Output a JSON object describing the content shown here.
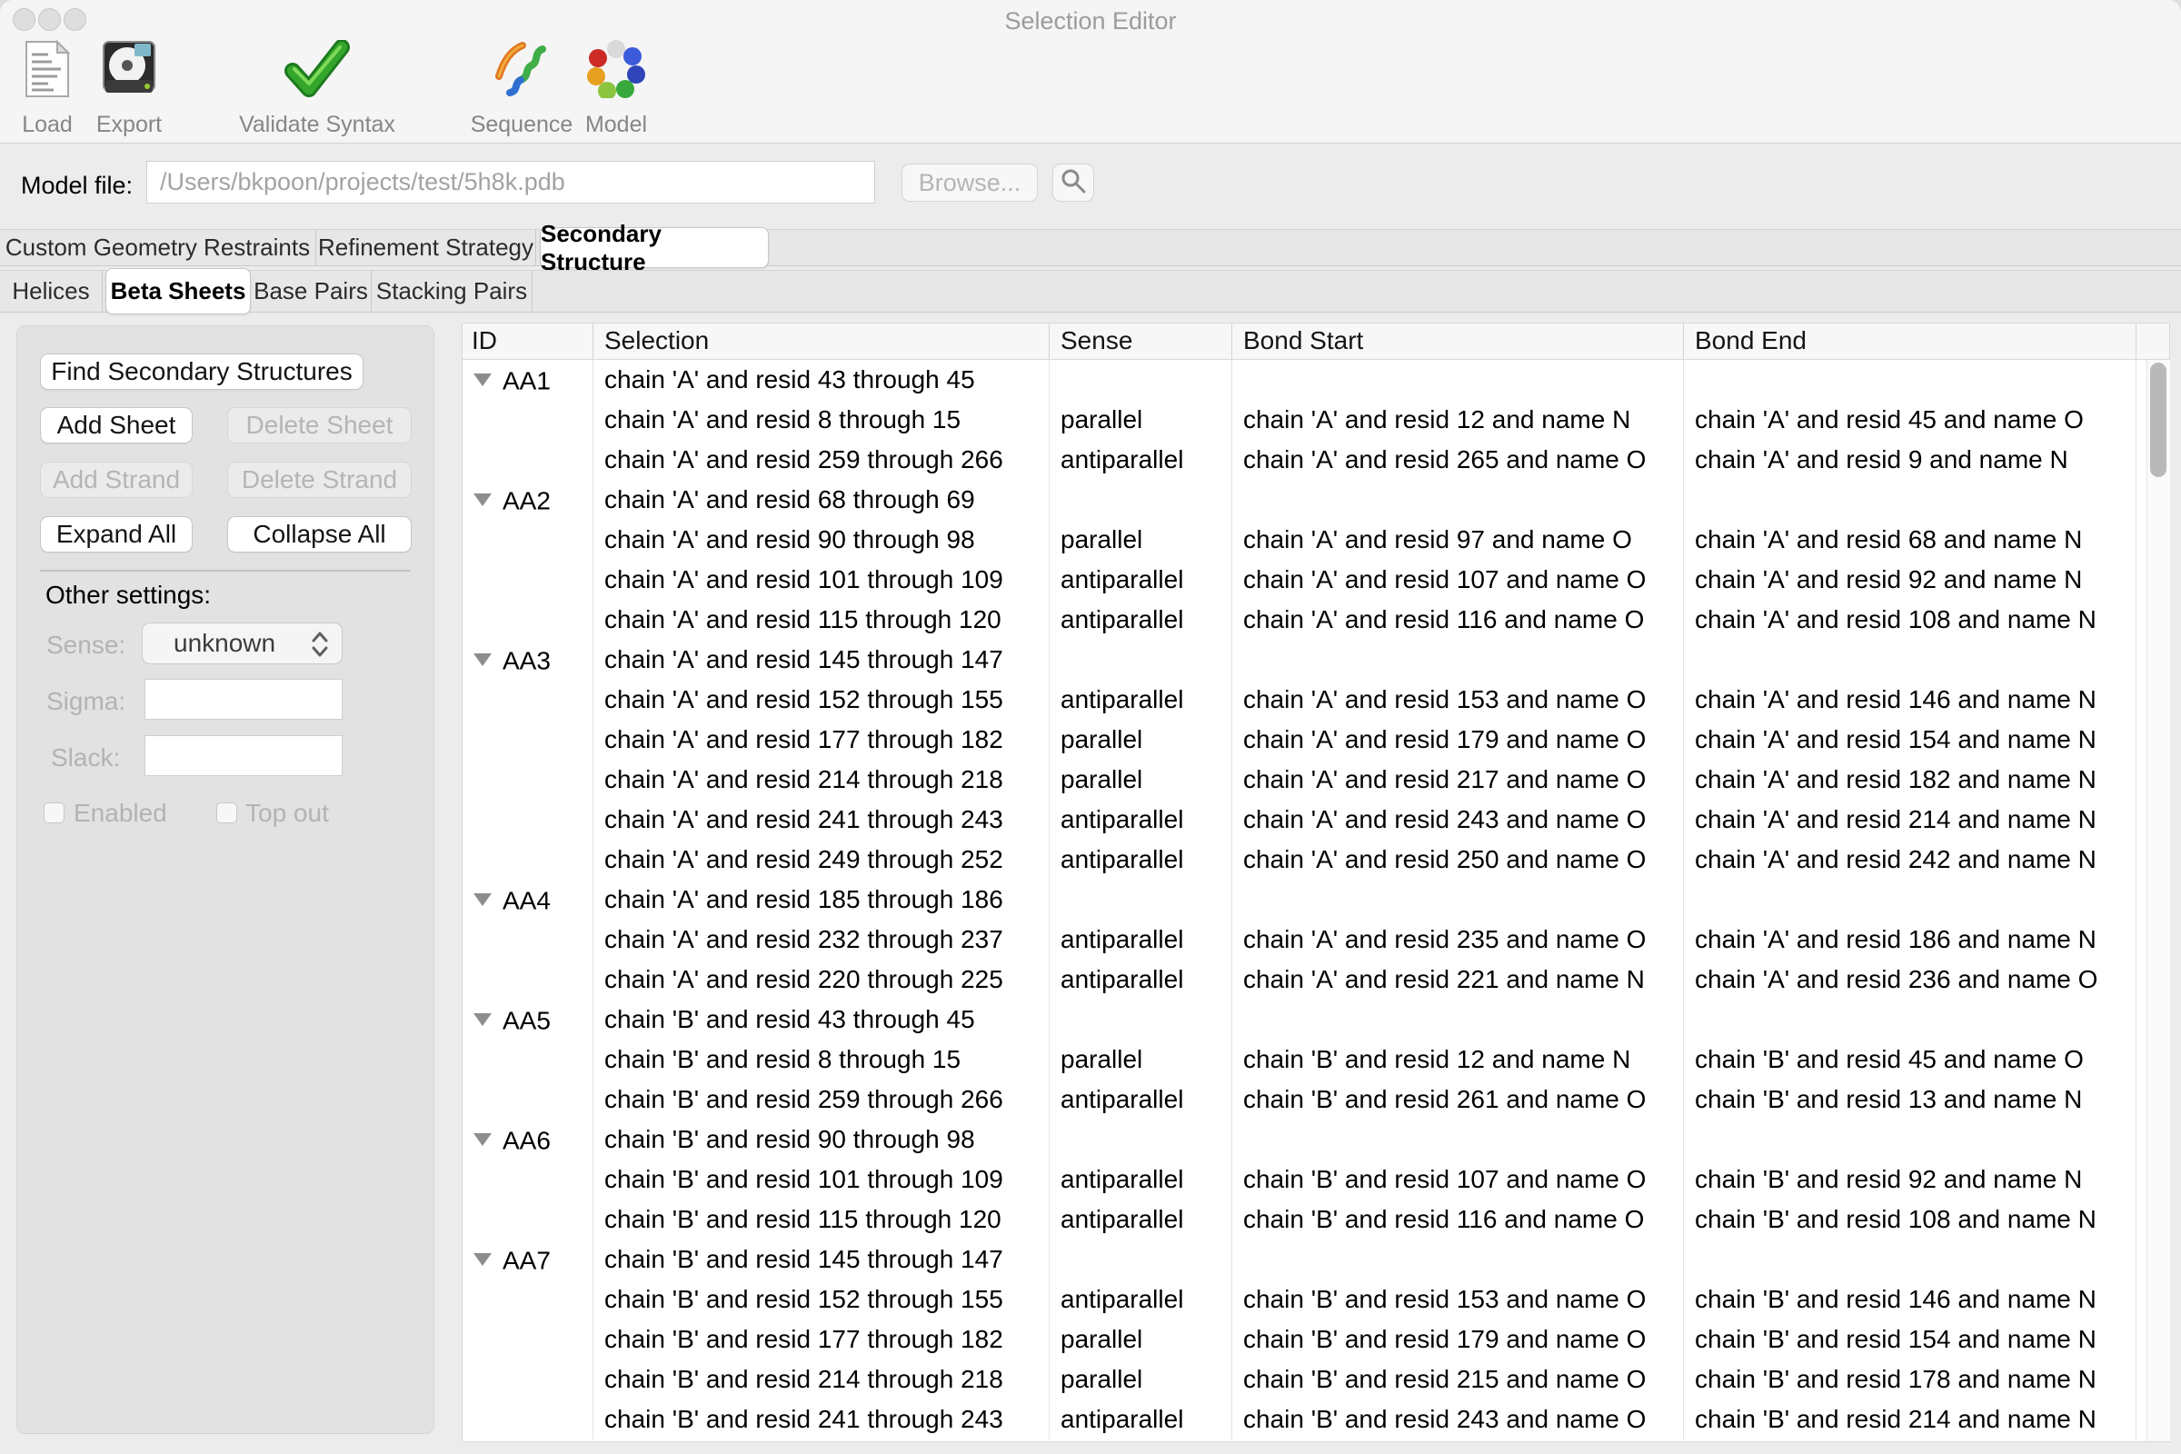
{
  "window": {
    "title": "Selection Editor"
  },
  "toolbar": {
    "load_label": "Load",
    "export_label": "Export",
    "validate_label": "Validate Syntax",
    "sequence_label": "Sequence",
    "model_label": "Model"
  },
  "model_file": {
    "label": "Model file:",
    "value": "/Users/bkpoon/projects/test/5h8k.pdb",
    "browse_label": "Browse..."
  },
  "tabs": {
    "items": [
      "Custom Geometry Restraints",
      "Refinement Strategy",
      "Secondary Structure"
    ],
    "selected": "Secondary Structure"
  },
  "subtabs": {
    "items": [
      "Helices",
      "Beta Sheets",
      "Base Pairs",
      "Stacking Pairs"
    ],
    "selected": "Beta Sheets"
  },
  "sidebar": {
    "find_button": "Find Secondary Structures",
    "add_sheet": "Add Sheet",
    "delete_sheet": "Delete Sheet",
    "add_strand": "Add Strand",
    "delete_strand": "Delete Strand",
    "expand_all": "Expand All",
    "collapse_all": "Collapse All",
    "other_settings_label": "Other settings:",
    "sense_label": "Sense:",
    "sense_value": "unknown",
    "sigma_label": "Sigma:",
    "sigma_value": "",
    "slack_label": "Slack:",
    "slack_value": "",
    "enabled_label": "Enabled",
    "enabled_checked": false,
    "top_out_label": "Top out",
    "top_out_checked": false
  },
  "table": {
    "columns": [
      "ID",
      "Selection",
      "Sense",
      "Bond Start",
      "Bond End"
    ],
    "rows": [
      {
        "id": "AA1",
        "selection": "chain 'A' and resid 43 through 45",
        "sense": "",
        "bond_start": "",
        "bond_end": ""
      },
      {
        "id": "",
        "selection": "chain 'A' and resid 8 through 15",
        "sense": "parallel",
        "bond_start": "chain 'A' and resid 12 and name N",
        "bond_end": "chain 'A' and resid 45 and name O"
      },
      {
        "id": "",
        "selection": "chain 'A' and resid 259 through 266",
        "sense": "antiparallel",
        "bond_start": "chain 'A' and resid 265 and name O",
        "bond_end": "chain 'A' and resid 9 and name N"
      },
      {
        "id": "AA2",
        "selection": "chain 'A' and resid 68 through 69",
        "sense": "",
        "bond_start": "",
        "bond_end": ""
      },
      {
        "id": "",
        "selection": "chain 'A' and resid 90 through 98",
        "sense": "parallel",
        "bond_start": "chain 'A' and resid 97 and name O",
        "bond_end": "chain 'A' and resid 68 and name N"
      },
      {
        "id": "",
        "selection": "chain 'A' and resid 101 through 109",
        "sense": "antiparallel",
        "bond_start": "chain 'A' and resid 107 and name O",
        "bond_end": "chain 'A' and resid 92 and name N"
      },
      {
        "id": "",
        "selection": "chain 'A' and resid 115 through 120",
        "sense": "antiparallel",
        "bond_start": "chain 'A' and resid 116 and name O",
        "bond_end": "chain 'A' and resid 108 and name N"
      },
      {
        "id": "AA3",
        "selection": "chain 'A' and resid 145 through 147",
        "sense": "",
        "bond_start": "",
        "bond_end": ""
      },
      {
        "id": "",
        "selection": "chain 'A' and resid 152 through 155",
        "sense": "antiparallel",
        "bond_start": "chain 'A' and resid 153 and name O",
        "bond_end": "chain 'A' and resid 146 and name N"
      },
      {
        "id": "",
        "selection": "chain 'A' and resid 177 through 182",
        "sense": "parallel",
        "bond_start": "chain 'A' and resid 179 and name O",
        "bond_end": "chain 'A' and resid 154 and name N"
      },
      {
        "id": "",
        "selection": "chain 'A' and resid 214 through 218",
        "sense": "parallel",
        "bond_start": "chain 'A' and resid 217 and name O",
        "bond_end": "chain 'A' and resid 182 and name N"
      },
      {
        "id": "",
        "selection": "chain 'A' and resid 241 through 243",
        "sense": "antiparallel",
        "bond_start": "chain 'A' and resid 243 and name O",
        "bond_end": "chain 'A' and resid 214 and name N"
      },
      {
        "id": "",
        "selection": "chain 'A' and resid 249 through 252",
        "sense": "antiparallel",
        "bond_start": "chain 'A' and resid 250 and name O",
        "bond_end": "chain 'A' and resid 242 and name N"
      },
      {
        "id": "AA4",
        "selection": "chain 'A' and resid 185 through 186",
        "sense": "",
        "bond_start": "",
        "bond_end": ""
      },
      {
        "id": "",
        "selection": "chain 'A' and resid 232 through 237",
        "sense": "antiparallel",
        "bond_start": "chain 'A' and resid 235 and name O",
        "bond_end": "chain 'A' and resid 186 and name N"
      },
      {
        "id": "",
        "selection": "chain 'A' and resid 220 through 225",
        "sense": "antiparallel",
        "bond_start": "chain 'A' and resid 221 and name N",
        "bond_end": "chain 'A' and resid 236 and name O"
      },
      {
        "id": "AA5",
        "selection": "chain 'B' and resid 43 through 45",
        "sense": "",
        "bond_start": "",
        "bond_end": ""
      },
      {
        "id": "",
        "selection": "chain 'B' and resid 8 through 15",
        "sense": "parallel",
        "bond_start": "chain 'B' and resid 12 and name N",
        "bond_end": "chain 'B' and resid 45 and name O"
      },
      {
        "id": "",
        "selection": "chain 'B' and resid 259 through 266",
        "sense": "antiparallel",
        "bond_start": "chain 'B' and resid 261 and name O",
        "bond_end": "chain 'B' and resid 13 and name N"
      },
      {
        "id": "AA6",
        "selection": "chain 'B' and resid 90 through 98",
        "sense": "",
        "bond_start": "",
        "bond_end": ""
      },
      {
        "id": "",
        "selection": "chain 'B' and resid 101 through 109",
        "sense": "antiparallel",
        "bond_start": "chain 'B' and resid 107 and name O",
        "bond_end": "chain 'B' and resid 92 and name N"
      },
      {
        "id": "",
        "selection": "chain 'B' and resid 115 through 120",
        "sense": "antiparallel",
        "bond_start": "chain 'B' and resid 116 and name O",
        "bond_end": "chain 'B' and resid 108 and name N"
      },
      {
        "id": "AA7",
        "selection": "chain 'B' and resid 145 through 147",
        "sense": "",
        "bond_start": "",
        "bond_end": ""
      },
      {
        "id": "",
        "selection": "chain 'B' and resid 152 through 155",
        "sense": "antiparallel",
        "bond_start": "chain 'B' and resid 153 and name O",
        "bond_end": "chain 'B' and resid 146 and name N"
      },
      {
        "id": "",
        "selection": "chain 'B' and resid 177 through 182",
        "sense": "parallel",
        "bond_start": "chain 'B' and resid 179 and name O",
        "bond_end": "chain 'B' and resid 154 and name N"
      },
      {
        "id": "",
        "selection": "chain 'B' and resid 214 through 218",
        "sense": "parallel",
        "bond_start": "chain 'B' and resid 215 and name O",
        "bond_end": "chain 'B' and resid 178 and name N"
      },
      {
        "id": "",
        "selection": "chain 'B' and resid 241 through 243",
        "sense": "antiparallel",
        "bond_start": "chain 'B' and resid 243 and name O",
        "bond_end": "chain 'B' and resid 214 and name N"
      }
    ]
  },
  "colors": {
    "window_bg": "#ececec",
    "toolbar_bg": "#f5f5f5",
    "panel_bg": "#e2e2e2",
    "table_header_bg": "#f7f7f7",
    "border": "#cfcfcf",
    "disabled_text": "#b5b5b5",
    "check_green": "#34a62c",
    "scrollbar_thumb": "#b9b9b9"
  }
}
